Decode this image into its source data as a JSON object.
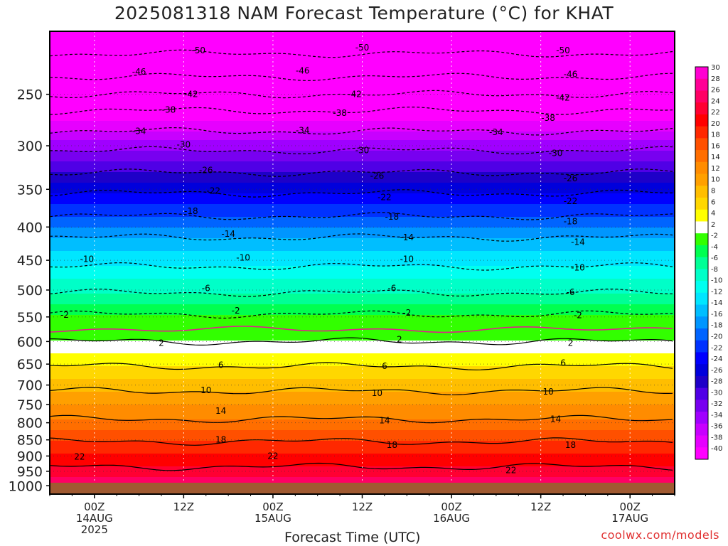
{
  "chart_data": {
    "type": "heatmap",
    "title": "2025081318 NAM Forecast Temperature (°C) for KHAT",
    "xlabel": "Forecast Time (UTC)",
    "ylabel": "",
    "y_scale": "log-pressure",
    "y_range": [
      200,
      1030
    ],
    "yticks": [
      250,
      300,
      350,
      400,
      450,
      500,
      550,
      600,
      650,
      700,
      750,
      800,
      850,
      900,
      950,
      1000
    ],
    "x_range_hours": [
      0,
      84
    ],
    "xticks": [
      {
        "hour": 6,
        "lines": [
          "00Z",
          "14AUG",
          "2025"
        ]
      },
      {
        "hour": 18,
        "lines": [
          "12Z"
        ]
      },
      {
        "hour": 30,
        "lines": [
          "00Z",
          "15AUG"
        ]
      },
      {
        "hour": 42,
        "lines": [
          "12Z"
        ]
      },
      {
        "hour": 54,
        "lines": [
          "00Z",
          "16AUG"
        ]
      },
      {
        "hour": 66,
        "lines": [
          "12Z"
        ]
      },
      {
        "hour": 78,
        "lines": [
          "00Z",
          "17AUG"
        ]
      }
    ],
    "grid": true,
    "legend": "right",
    "colorbar_labels": [
      "30",
      "28",
      "26",
      "24",
      "22",
      "20",
      "18",
      "16",
      "14",
      "12",
      "10",
      "8",
      "6",
      "4",
      "2",
      "-2",
      "-4",
      "-6",
      "-8",
      "-10",
      "-12",
      "-14",
      "-16",
      "-18",
      "-20",
      "-22",
      "-24",
      "-26",
      "-28",
      "-30",
      "-32",
      "-34",
      "-36",
      "-38",
      "-40"
    ],
    "colorbar_colors": [
      "#ff00d2",
      "#ff0096",
      "#ff0064",
      "#ff0032",
      "#ff0000",
      "#ff2800",
      "#ff5000",
      "#ff6e00",
      "#ff8c00",
      "#ffa000",
      "#ffbe00",
      "#ffd700",
      "#ffff00",
      "#ffffff",
      "#32ff00",
      "#00ff50",
      "#00ff96",
      "#00ffc8",
      "#00fff0",
      "#00e6ff",
      "#00beff",
      "#0096ff",
      "#0064ff",
      "#0032ff",
      "#0000ff",
      "#0000dc",
      "#1e00c8",
      "#5000e6",
      "#7800f0",
      "#a000ff",
      "#c800ff",
      "#e600ff",
      "#ff00ff"
    ],
    "levels": [
      {
        "p": 200,
        "t": -55
      },
      {
        "p": 220,
        "t": -49
      },
      {
        "p": 235,
        "t": -46
      },
      {
        "p": 250,
        "t": -42
      },
      {
        "p": 265,
        "t": -38
      },
      {
        "p": 285,
        "t": -34
      },
      {
        "p": 305,
        "t": -30
      },
      {
        "p": 330,
        "t": -26
      },
      {
        "p": 355,
        "t": -22
      },
      {
        "p": 385,
        "t": -18
      },
      {
        "p": 415,
        "t": -14
      },
      {
        "p": 460,
        "t": -10
      },
      {
        "p": 505,
        "t": -6
      },
      {
        "p": 545,
        "t": -2
      },
      {
        "p": 575,
        "t": 0
      },
      {
        "p": 600,
        "t": 2
      },
      {
        "p": 655,
        "t": 6
      },
      {
        "p": 715,
        "t": 10
      },
      {
        "p": 790,
        "t": 14
      },
      {
        "p": 855,
        "t": 18
      },
      {
        "p": 935,
        "t": 22
      },
      {
        "p": 1000,
        "t": 26
      },
      {
        "p": 1030,
        "t": 28
      }
    ],
    "contour_labels": [
      {
        "text": "-50",
        "hour": 20,
        "p": 214
      },
      {
        "text": "-50",
        "hour": 42,
        "p": 212
      },
      {
        "text": "-50",
        "hour": 69,
        "p": 214
      },
      {
        "text": "-46",
        "hour": 12,
        "p": 231
      },
      {
        "text": "-46",
        "hour": 34,
        "p": 230
      },
      {
        "text": "-46",
        "hour": 70,
        "p": 233
      },
      {
        "text": "-42",
        "hour": 19,
        "p": 250
      },
      {
        "text": "-42",
        "hour": 41,
        "p": 250
      },
      {
        "text": "-42",
        "hour": 69,
        "p": 253
      },
      {
        "text": "-38",
        "hour": 16,
        "p": 264
      },
      {
        "text": "-38",
        "hour": 39,
        "p": 267
      },
      {
        "text": "-38",
        "hour": 67,
        "p": 272
      },
      {
        "text": "-34",
        "hour": 12,
        "p": 285
      },
      {
        "text": "-34",
        "hour": 34,
        "p": 284
      },
      {
        "text": "-34",
        "hour": 60,
        "p": 286
      },
      {
        "text": "-30",
        "hour": 18,
        "p": 299
      },
      {
        "text": "-30",
        "hour": 42,
        "p": 305
      },
      {
        "text": "-30",
        "hour": 68,
        "p": 308
      },
      {
        "text": "-26",
        "hour": 21,
        "p": 327
      },
      {
        "text": "-26",
        "hour": 44,
        "p": 334
      },
      {
        "text": "-26",
        "hour": 70,
        "p": 337
      },
      {
        "text": "-22",
        "hour": 22,
        "p": 352
      },
      {
        "text": "-22",
        "hour": 45,
        "p": 360
      },
      {
        "text": "-22",
        "hour": 70,
        "p": 365
      },
      {
        "text": "-18",
        "hour": 19,
        "p": 378
      },
      {
        "text": "-18",
        "hour": 46,
        "p": 386
      },
      {
        "text": "-18",
        "hour": 70,
        "p": 392
      },
      {
        "text": "-14",
        "hour": 24,
        "p": 410
      },
      {
        "text": "-14",
        "hour": 48,
        "p": 415
      },
      {
        "text": "-14",
        "hour": 71,
        "p": 422
      },
      {
        "text": "-10",
        "hour": 5,
        "p": 448
      },
      {
        "text": "-10",
        "hour": 26,
        "p": 446
      },
      {
        "text": "-10",
        "hour": 48,
        "p": 448
      },
      {
        "text": "-10",
        "hour": 71,
        "p": 462
      },
      {
        "text": "-6",
        "hour": 21,
        "p": 497
      },
      {
        "text": "-6",
        "hour": 46,
        "p": 497
      },
      {
        "text": "-6",
        "hour": 70,
        "p": 504
      },
      {
        "text": "-2",
        "hour": 2,
        "p": 546
      },
      {
        "text": "-2",
        "hour": 25,
        "p": 538
      },
      {
        "text": "-2",
        "hour": 48,
        "p": 542
      },
      {
        "text": "-2",
        "hour": 71,
        "p": 547
      },
      {
        "text": "2",
        "hour": 15,
        "p": 603
      },
      {
        "text": "2",
        "hour": 47,
        "p": 596
      },
      {
        "text": "2",
        "hour": 70,
        "p": 603
      },
      {
        "text": "6",
        "hour": 23,
        "p": 652
      },
      {
        "text": "6",
        "hour": 45,
        "p": 655
      },
      {
        "text": "6",
        "hour": 69,
        "p": 647
      },
      {
        "text": "10",
        "hour": 21,
        "p": 713
      },
      {
        "text": "10",
        "hour": 44,
        "p": 720
      },
      {
        "text": "10",
        "hour": 67,
        "p": 717
      },
      {
        "text": "14",
        "hour": 23,
        "p": 767
      },
      {
        "text": "14",
        "hour": 45,
        "p": 794
      },
      {
        "text": "14",
        "hour": 68,
        "p": 790
      },
      {
        "text": "18",
        "hour": 23,
        "p": 850
      },
      {
        "text": "18",
        "hour": 46,
        "p": 866
      },
      {
        "text": "18",
        "hour": 70,
        "p": 866
      },
      {
        "text": "22",
        "hour": 4,
        "p": 902
      },
      {
        "text": "22",
        "hour": 30,
        "p": 900
      },
      {
        "text": "22",
        "hour": 62,
        "p": 947
      }
    ],
    "reds": [
      {
        "text": "2",
        "hour": 2,
        "p": 546
      }
    ]
  },
  "credit": "coolwx.com/models"
}
